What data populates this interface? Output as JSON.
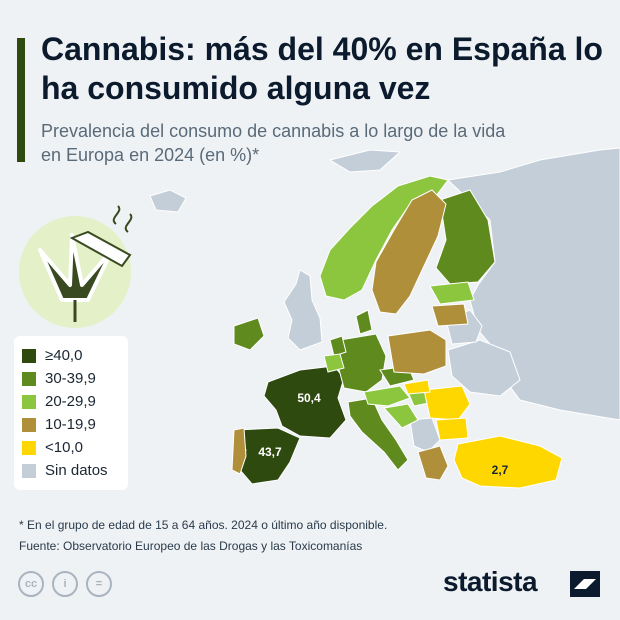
{
  "title": "Cannabis: más del 40% en España lo ha consumido alguna vez",
  "subtitle": "Prevalencia del consumo de cannabis a lo largo de la vida en Europa en 2024 (en %)*",
  "legend": [
    {
      "label": "≥40,0",
      "color": "#2f4a0f"
    },
    {
      "label": "30-39,9",
      "color": "#5f8a1e"
    },
    {
      "label": "20-29,9",
      "color": "#8cc63f"
    },
    {
      "label": "10-19,9",
      "color": "#b08f3a"
    },
    {
      "label": "<10,0",
      "color": "#ffd700"
    },
    {
      "label": "Sin datos",
      "color": "#c4ced8"
    }
  ],
  "map_data": {
    "labeled_values": [
      {
        "country": "France",
        "value": "50,4"
      },
      {
        "country": "Spain",
        "value": "43,7"
      },
      {
        "country": "Turkey",
        "value": "2,7"
      }
    ],
    "colors": {
      "sea": "#eef2f5",
      "no_data": "#c4ced8",
      "ge40": "#2f4a0f",
      "r30_39": "#5f8a1e",
      "r20_29": "#8cc63f",
      "r10_19": "#b08f3a",
      "lt10": "#ffd700"
    }
  },
  "footnote": "* En el grupo de edad de 15 a 64 años. 2024 o último año disponible.",
  "source": "Fuente: Observatorio Europeo de las Drogas y las Toxicomanías",
  "license_icons": [
    "cc-icon",
    "person-icon",
    "equals-icon"
  ],
  "license_labels": [
    "cc",
    "i",
    "="
  ],
  "brand": "statista"
}
